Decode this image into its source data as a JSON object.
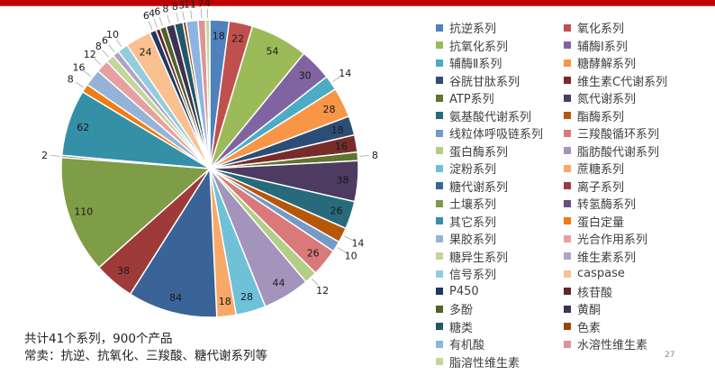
{
  "header": {
    "bar_color": "#c00000"
  },
  "chart_data": {
    "type": "pie",
    "title": "",
    "start_angle_deg": 0,
    "direction": "clockwise",
    "legend_position": "right",
    "categories": [
      "抗逆系列",
      "氧化系列",
      "抗氧化系列",
      "辅酶Ⅰ系列",
      "辅酶Ⅱ系列",
      "糖酵解系列",
      "谷胱甘肽系列",
      "维生素C代谢系列",
      "ATP系列",
      "氮代谢系列",
      "氨基酸代谢系列",
      "酯酶系列",
      "线粒体呼吸链系列",
      "三羧酸循环系列",
      "蛋白酶系列",
      "脂肪酸代谢系列",
      "淀粉系列",
      "蔗糖系列",
      "糖代谢系列",
      "离子系列",
      "土壤系列",
      "转氢酶系列",
      "其它系列",
      "蛋白定量",
      "果胶系列",
      "光合作用系列",
      "糖异生系列",
      "维生素系列",
      "信号系列",
      "caspase",
      "P450",
      "核苷酸",
      "多酚",
      "黄酮",
      "糖类",
      "色素",
      "有机酸",
      "水溶性维生素",
      "脂溶性维生素"
    ],
    "values": [
      18,
      22,
      54,
      30,
      14,
      28,
      18,
      16,
      8,
      38,
      26,
      14,
      10,
      26,
      12,
      44,
      28,
      18,
      84,
      38,
      110,
      2,
      62,
      8,
      16,
      12,
      8,
      6,
      10,
      24,
      6,
      4,
      6,
      8,
      8,
      3,
      11,
      7,
      4
    ],
    "colors": [
      "#4f81bd",
      "#c0504d",
      "#9bbb59",
      "#8064a2",
      "#4bacc6",
      "#f79646",
      "#2c4d75",
      "#772c2a",
      "#5f7530",
      "#4d3b62",
      "#276a7c",
      "#b65708",
      "#729aca",
      "#d9797a",
      "#b4cd87",
      "#a493bb",
      "#6fc1d7",
      "#f8a868",
      "#3a6397",
      "#9e3b39",
      "#7f9c46",
      "#654f84",
      "#3490a6",
      "#f07c14",
      "#95b3d7",
      "#e6a0a0",
      "#c3d69b",
      "#b3a2c7",
      "#93cddd",
      "#fac090",
      "#1f3864",
      "#632523",
      "#4f6228",
      "#3f3151",
      "#215868",
      "#974806",
      "#8db3e2",
      "#da9694",
      "#c4d79b"
    ],
    "label_placement": [
      "in",
      "in",
      "in",
      "in",
      "out",
      "in",
      "in",
      "in",
      "out",
      "in",
      "in",
      "out",
      "out",
      "in",
      "out",
      "in",
      "in",
      "in",
      "in",
      "in",
      "in",
      "out",
      "in",
      "out",
      "out",
      "out",
      "out",
      "out",
      "out",
      "in",
      "out",
      "out",
      "out",
      "out",
      "out",
      "out",
      "out",
      "out",
      "out"
    ]
  },
  "legend": {
    "items": [
      {
        "label": "抗逆系列",
        "color": "#4f81bd"
      },
      {
        "label": "氧化系列",
        "color": "#c0504d"
      },
      {
        "label": "抗氧化系列",
        "color": "#9bbb59"
      },
      {
        "label": "辅酶Ⅰ系列",
        "color": "#8064a2"
      },
      {
        "label": "辅酶Ⅱ系列",
        "color": "#4bacc6"
      },
      {
        "label": "糖酵解系列",
        "color": "#f79646"
      },
      {
        "label": "谷胱甘肽系列",
        "color": "#2c4d75"
      },
      {
        "label": "维生素C代谢系列",
        "color": "#772c2a"
      },
      {
        "label": "ATP系列",
        "color": "#5f7530"
      },
      {
        "label": "氮代谢系列",
        "color": "#4d3b62"
      },
      {
        "label": "氨基酸代谢系列",
        "color": "#276a7c"
      },
      {
        "label": "酯酶系列",
        "color": "#b65708"
      },
      {
        "label": "线粒体呼吸链系列",
        "color": "#729aca"
      },
      {
        "label": "三羧酸循环系列",
        "color": "#d9797a"
      },
      {
        "label": "蛋白酶系列",
        "color": "#b4cd87"
      },
      {
        "label": "脂肪酸代谢系列",
        "color": "#a493bb"
      },
      {
        "label": "淀粉系列",
        "color": "#6fc1d7"
      },
      {
        "label": "蔗糖系列",
        "color": "#f8a868"
      },
      {
        "label": "糖代谢系列",
        "color": "#3a6397"
      },
      {
        "label": "离子系列",
        "color": "#9e3b39"
      },
      {
        "label": "土壤系列",
        "color": "#7f9c46"
      },
      {
        "label": "转氢酶系列",
        "color": "#654f84"
      },
      {
        "label": "其它系列",
        "color": "#3490a6"
      },
      {
        "label": "蛋白定量",
        "color": "#f07c14"
      },
      {
        "label": "果胶系列",
        "color": "#95b3d7"
      },
      {
        "label": "光合作用系列",
        "color": "#e6a0a0"
      },
      {
        "label": "糖异生系列",
        "color": "#c3d69b"
      },
      {
        "label": "维生素系列",
        "color": "#b3a2c7"
      },
      {
        "label": "信号系列",
        "color": "#93cddd"
      },
      {
        "label": "caspase",
        "color": "#fac090"
      },
      {
        "label": "P450",
        "color": "#1f3864"
      },
      {
        "label": "核苷酸",
        "color": "#632523"
      },
      {
        "label": "多酚",
        "color": "#4f6228"
      },
      {
        "label": "黄酮",
        "color": "#3f3151"
      },
      {
        "label": "糖类",
        "color": "#215868"
      },
      {
        "label": "色素",
        "color": "#974806"
      },
      {
        "label": "有机酸",
        "color": "#8db3e2"
      },
      {
        "label": "水溶性维生素",
        "color": "#da9694"
      },
      {
        "label": "脂溶性维生素",
        "color": "#c4d79b"
      }
    ]
  },
  "footer": {
    "line1": "共计41个系列，900个产品",
    "line2": "常卖：抗逆、抗氧化、三羧酸、糖代谢系列等"
  },
  "page_number": "27"
}
